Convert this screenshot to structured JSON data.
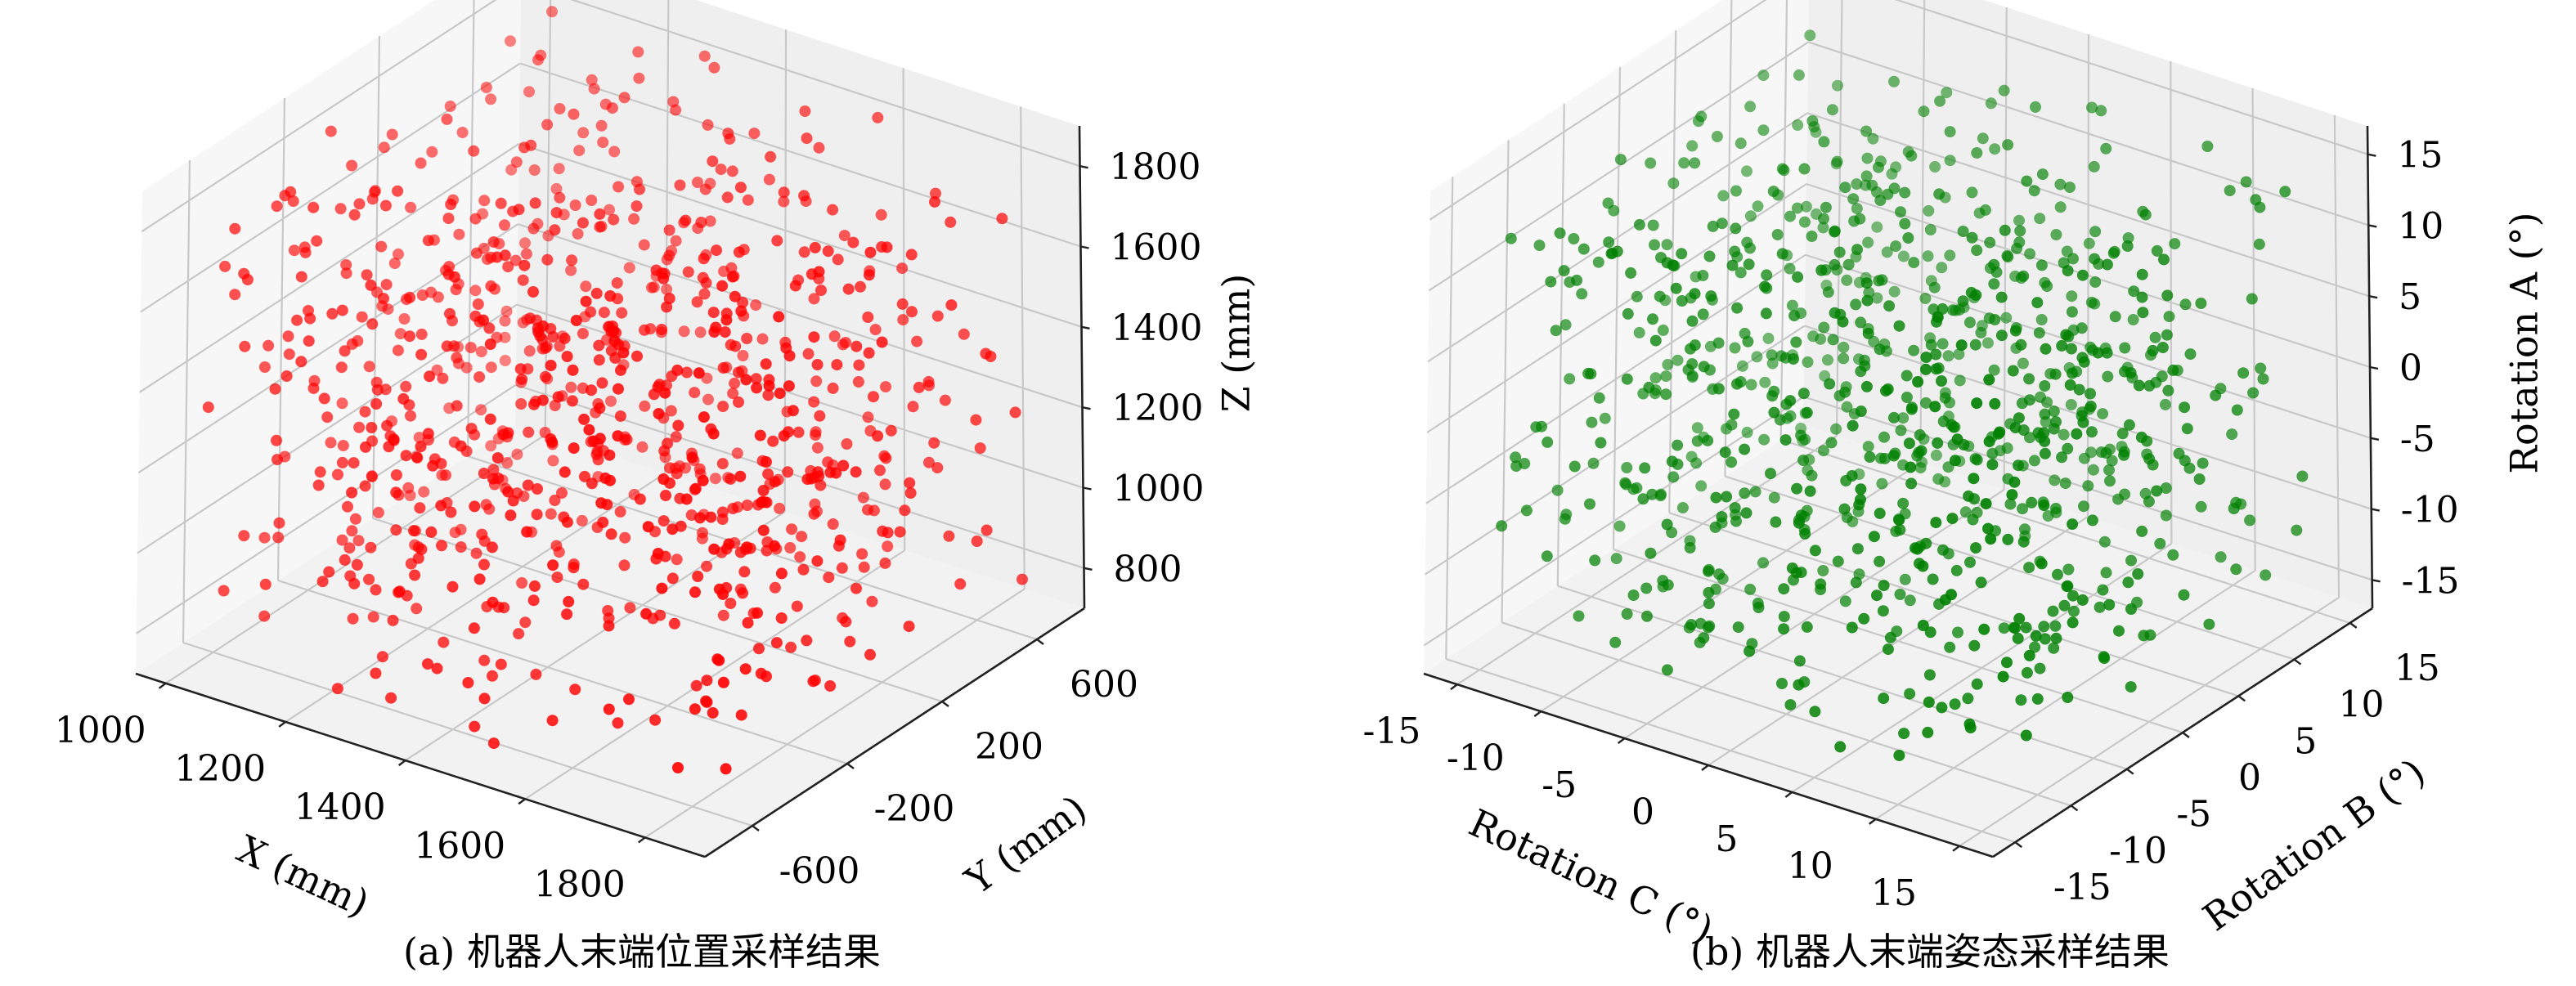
{
  "chart_data": [
    {
      "type": "scatter3d",
      "caption": "(a) 机器人末端位置采样结果",
      "color": "#ff0000",
      "xlabel": "X (mm)",
      "ylabel": "Y (mm)",
      "zlabel": "Z (mm)",
      "xlim": [
        950,
        1900
      ],
      "ylim": [
        -800,
        800
      ],
      "zlim": [
        700,
        1900
      ],
      "xticks": [
        "1000",
        "1200",
        "1400",
        "1600",
        "1800"
      ],
      "xtick_values": [
        1000,
        1200,
        1400,
        1600,
        1800
      ],
      "yticks": [
        "-600",
        "-200",
        "200",
        "600"
      ],
      "ytick_values": [
        -600,
        -200,
        200,
        600
      ],
      "zticks": [
        "800",
        "1000",
        "1200",
        "1400",
        "1600",
        "1800"
      ],
      "ztick_values": [
        800,
        1000,
        1200,
        1400,
        1600,
        1800
      ],
      "n_points": 900,
      "sample_range": {
        "x": [
          1000,
          1850
        ],
        "y": [
          -700,
          700
        ],
        "z": [
          750,
          1850
        ]
      },
      "grid": true
    },
    {
      "type": "scatter3d",
      "caption": "(b) 机器人末端姿态采样结果",
      "color": "#008000",
      "xlabel": "Rotation C (°)",
      "ylabel": "Rotation B (°)",
      "zlabel": "Rotation A (°)",
      "xlim": [
        -17,
        17
      ],
      "ylim": [
        -17,
        17
      ],
      "zlim": [
        -17,
        17
      ],
      "xticks": [
        "-15",
        "-10",
        "-5",
        "0",
        "5",
        "10",
        "15"
      ],
      "xtick_values": [
        -15,
        -10,
        -5,
        0,
        5,
        10,
        15
      ],
      "yticks": [
        "-15",
        "-10",
        "-5",
        "0",
        "5",
        "10",
        "15"
      ],
      "ytick_values": [
        -15,
        -10,
        -5,
        0,
        5,
        10,
        15
      ],
      "zticks": [
        "-15",
        "-10",
        "-5",
        "0",
        "5",
        "10",
        "15"
      ],
      "ztick_values": [
        -15,
        -10,
        -5,
        0,
        5,
        10,
        15
      ],
      "n_points": 900,
      "sample_range": {
        "x": [
          -15,
          15
        ],
        "y": [
          -15,
          15
        ],
        "z": [
          -15,
          15
        ]
      },
      "grid": true
    }
  ]
}
